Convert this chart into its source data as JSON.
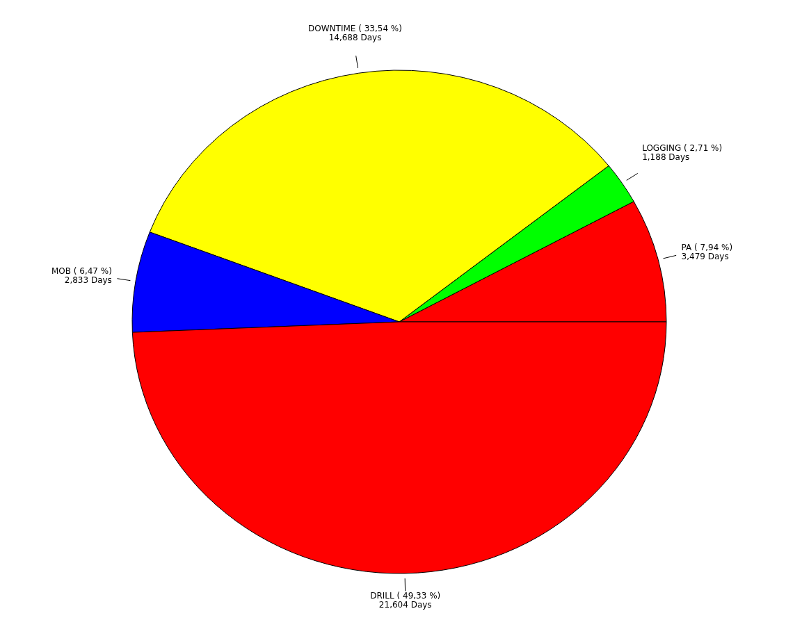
{
  "chart_data": {
    "type": "pie",
    "categories": [
      "PA",
      "LOGGING",
      "DOWNTIME",
      "MOB",
      "DRILL"
    ],
    "values": [
      7.94,
      2.71,
      33.54,
      6.47,
      49.33
    ],
    "value_labels": [
      "( 7,94 %)\n3,479  Days",
      "( 2,71 %)\n1,188  Days",
      "( 33,54 %)\n14,688  Days",
      "( 6,47 %)\n2,833  Days",
      "( 49,33 %)\n21,604  Days"
    ],
    "colors": [
      "#ff0000",
      "#00ff00",
      "#ffff00",
      "#0000ff",
      "#ff0000"
    ]
  }
}
